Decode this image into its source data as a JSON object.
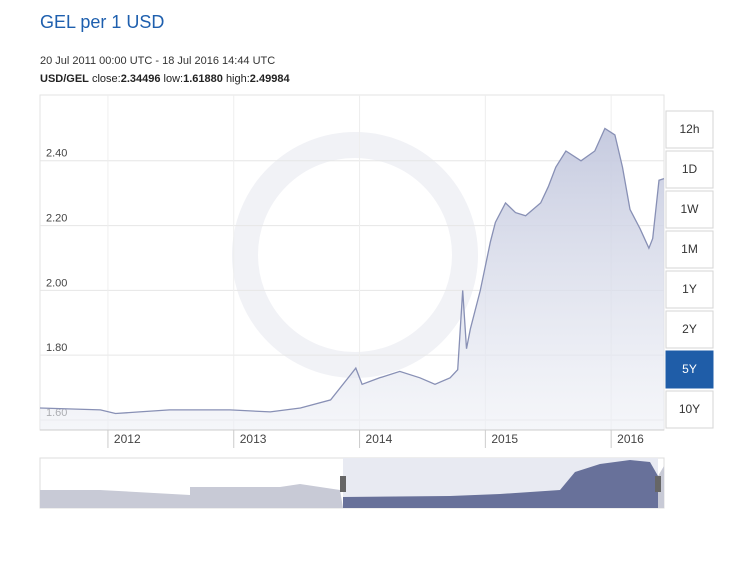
{
  "header": {
    "title": "GEL per 1 USD",
    "range": "20 Jul 2011 00:00 UTC - 18 Jul 2016 14:44 UTC",
    "pair": "USD/GEL",
    "close_label": "close:",
    "close": "2.34496",
    "low_label": "low:",
    "low": "1.61880",
    "high_label": "high:",
    "high": "2.49984"
  },
  "buttons": [
    {
      "label": "12h"
    },
    {
      "label": "1D"
    },
    {
      "label": "1W"
    },
    {
      "label": "1M"
    },
    {
      "label": "1Y"
    },
    {
      "label": "2Y"
    },
    {
      "label": "5Y",
      "active": true
    },
    {
      "label": "10Y"
    }
  ],
  "chart_data": {
    "type": "line",
    "x": [
      2011.46,
      2011.94,
      2012.06,
      2012.25,
      2012.49,
      2012.97,
      2013.29,
      2013.53,
      2013.77,
      2013.93,
      2013.97,
      2014.02,
      2014.16,
      2014.32,
      2014.48,
      2014.6,
      2014.72,
      2014.78,
      2014.82,
      2014.85,
      2014.88,
      2014.96,
      2015.04,
      2015.08,
      2015.16,
      2015.24,
      2015.32,
      2015.44,
      2015.5,
      2015.56,
      2015.64,
      2015.76,
      2015.87,
      2015.95,
      2016.03,
      2016.09,
      2016.15,
      2016.23,
      2016.3,
      2016.33,
      2016.38,
      2016.42
    ],
    "series": [
      {
        "name": "USD/GEL",
        "color": "#8890b5",
        "values": [
          1.637,
          1.631,
          1.62,
          1.625,
          1.631,
          1.631,
          1.625,
          1.637,
          1.662,
          1.74,
          1.76,
          1.71,
          1.73,
          1.75,
          1.73,
          1.71,
          1.73,
          1.755,
          2.0,
          1.82,
          1.88,
          2.0,
          2.15,
          2.21,
          2.27,
          2.24,
          2.23,
          2.27,
          2.32,
          2.38,
          2.43,
          2.4,
          2.43,
          2.5,
          2.48,
          2.38,
          2.25,
          2.19,
          2.13,
          2.16,
          2.34,
          2.345
        ]
      }
    ],
    "xlim": [
      2011.46,
      2016.42
    ],
    "xticks": [
      2012,
      2013,
      2014,
      2015,
      2016
    ],
    "ylim": [
      1.569,
      2.603
    ],
    "yticks": [
      {
        "value": 1.6,
        "label": "1.60"
      },
      {
        "value": 1.8,
        "label": "1.80"
      },
      {
        "value": 2.0,
        "label": "2.00"
      },
      {
        "value": 2.2,
        "label": "2.20"
      },
      {
        "value": 2.4,
        "label": "2.40"
      }
    ],
    "grid": true
  }
}
